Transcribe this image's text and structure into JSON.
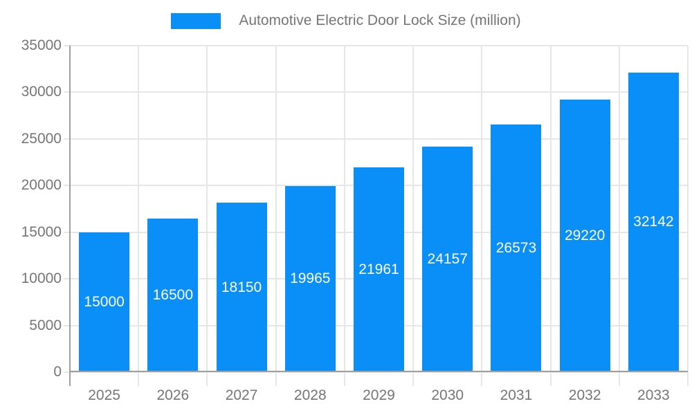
{
  "legend": {
    "label": "Automotive Electric Door Lock Size (million)"
  },
  "colors": {
    "bar": "#0a8ff9",
    "grid": "#e6e6e6",
    "axis": "#9e9e9e",
    "tick_text": "#757575",
    "value_label": "#ffffff",
    "background": "#ffffff"
  },
  "chart_data": {
    "type": "bar",
    "title": "Automotive Electric Door Lock Size (million)",
    "categories": [
      "2025",
      "2026",
      "2027",
      "2028",
      "2029",
      "2030",
      "2031",
      "2032",
      "2033"
    ],
    "series": [
      {
        "name": "Automotive Electric Door Lock Size (million)",
        "values": [
          15000,
          16500,
          18150,
          19965,
          21961,
          24157,
          26573,
          29220,
          32142
        ],
        "color": "#0a8ff9"
      }
    ],
    "value_labels_shown": true,
    "value_label_position": "inside-center",
    "xlabel": "",
    "ylabel": "",
    "ylim": [
      0,
      35000
    ],
    "yticks": [
      0,
      5000,
      10000,
      15000,
      20000,
      25000,
      30000,
      35000
    ],
    "grid": true,
    "legend_position": "top-center"
  }
}
